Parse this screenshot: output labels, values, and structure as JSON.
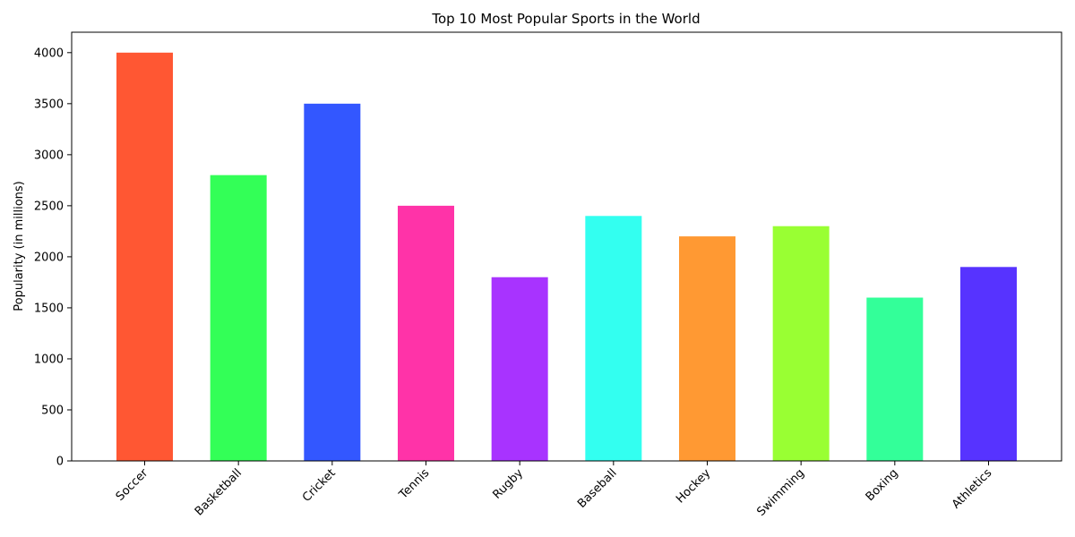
{
  "chart_data": {
    "type": "bar",
    "title": "Top 10 Most Popular Sports in the World",
    "xlabel": "",
    "ylabel": "Popularity (in millions)",
    "categories": [
      "Soccer",
      "Basketball",
      "Cricket",
      "Tennis",
      "Rugby",
      "Baseball",
      "Hockey",
      "Swimming",
      "Boxing",
      "Athletics"
    ],
    "values": [
      4000,
      2800,
      3500,
      2500,
      1800,
      2400,
      2200,
      2300,
      1600,
      1900
    ],
    "colors": [
      "#ff5733",
      "#33ff57",
      "#3357ff",
      "#ff33a8",
      "#a833ff",
      "#33fff0",
      "#ff9933",
      "#99ff33",
      "#33ff99",
      "#5733ff"
    ],
    "ylim": [
      0,
      4200
    ],
    "yticks": [
      0,
      500,
      1000,
      1500,
      2000,
      2500,
      3000,
      3500,
      4000
    ],
    "grid": false,
    "legend": "none"
  }
}
